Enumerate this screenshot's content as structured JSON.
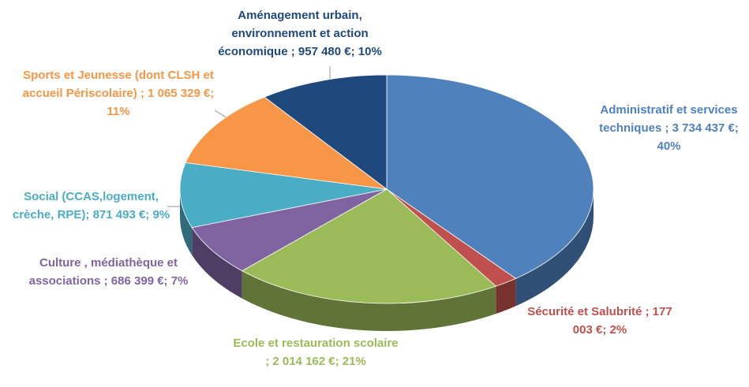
{
  "chart_data": {
    "type": "pie3d",
    "labels": [
      "Administratif et services techniques ; 3 734 437 €; 40%",
      "Sécurité et Salubrité ; 177 003 €; 2%",
      "Ecole et restauration scolaire ; 2 014 162 €; 21%",
      "Culture , médiathèque et associations  ; 686 399 €; 7%",
      "Social (CCAS,logement, crèche, RPE); 871 493 €; 9%",
      "Sports et Jeunesse (dont CLSH et accueil Périscolaire) ; 1 065 329 €; 11%",
      "Aménagement urbain, environnement et action économique ; 957 480 €; 10%"
    ],
    "values": [
      3734437,
      177003,
      2014162,
      686399,
      871493,
      1065329,
      957480
    ],
    "colors": [
      "#4f81bd",
      "#c0504d",
      "#9bbb59",
      "#8064a2",
      "#4bacc6",
      "#f79646",
      "#1f497d"
    ]
  }
}
